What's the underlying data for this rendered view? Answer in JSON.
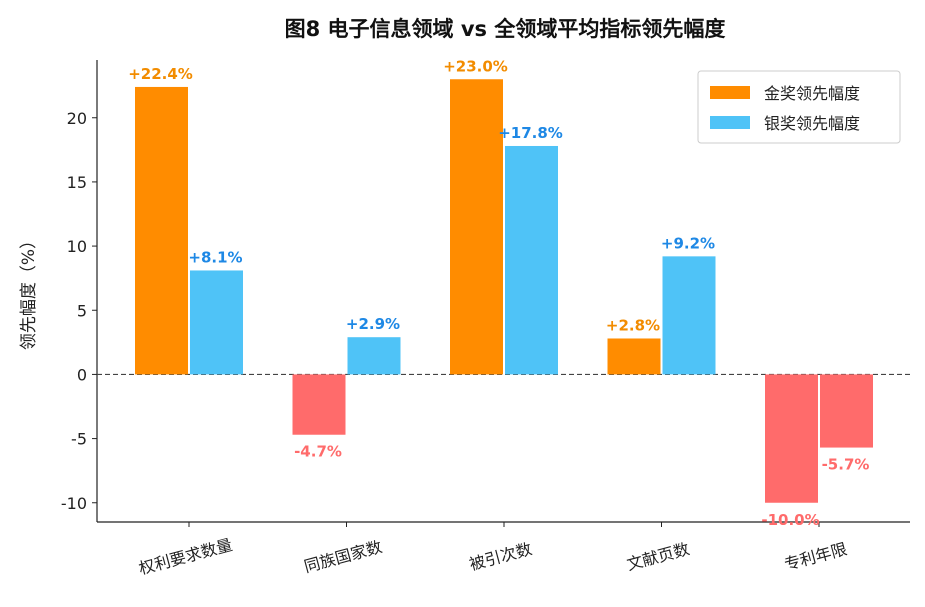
{
  "chart_data": {
    "type": "bar",
    "title": "图8  电子信息领域 vs 全领域平均指标领先幅度",
    "xlabel": "",
    "ylabel": "领先幅度（%）",
    "ylim": [
      -11.5,
      24.5
    ],
    "yticks": [
      -10,
      -5,
      0,
      5,
      10,
      15,
      20
    ],
    "ytick_labels": [
      "-10",
      "-5",
      "0",
      "5",
      "10",
      "15",
      "20"
    ],
    "categories": [
      "权利要求数量",
      "同族国家数",
      "被引次数",
      "文献页数",
      "专利年限"
    ],
    "series": [
      {
        "name": "金奖领先幅度",
        "color": "#FF8C00",
        "label_color": "#F28C00",
        "values": [
          22.4,
          -4.7,
          23.0,
          2.8,
          -10.0
        ],
        "labels": [
          "+22.4%",
          "-4.7%",
          "+23.0%",
          "+2.8%",
          "-10.0%"
        ]
      },
      {
        "name": "银奖领先幅度",
        "color": "#4FC3F7",
        "label_color": "#1E88E5",
        "values": [
          8.1,
          2.9,
          17.8,
          9.2,
          -5.7
        ],
        "labels": [
          "+8.1%",
          "+2.9%",
          "+17.8%",
          "+9.2%",
          "-5.7%"
        ]
      }
    ],
    "negative_color": "#FF6B6B",
    "zero_line": true,
    "grid": false,
    "legend_position": "top-right"
  }
}
